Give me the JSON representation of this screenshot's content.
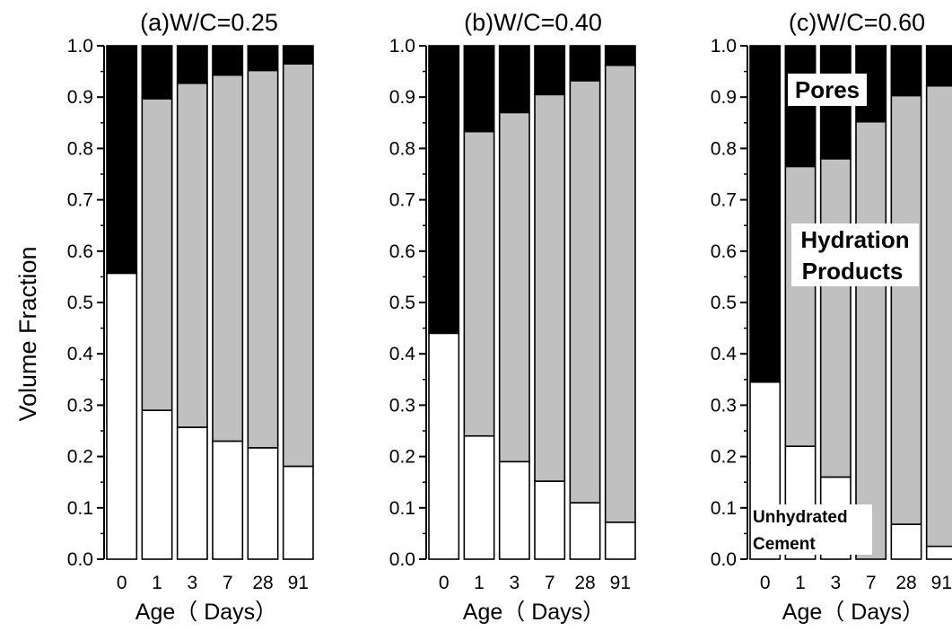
{
  "chart_data": [
    {
      "type": "bar",
      "stacked": true,
      "title": "(a)W/C=0.25",
      "xlabel": "Age（ Days）",
      "ylabel": "Volume Fraction",
      "ylim": [
        0,
        1.0
      ],
      "yticks": [
        "0.0",
        "0.1",
        "0.2",
        "0.3",
        "0.4",
        "0.5",
        "0.6",
        "0.7",
        "0.8",
        "0.9",
        "1.0"
      ],
      "categories": [
        "0",
        "1",
        "3",
        "7",
        "28",
        "91"
      ],
      "series": [
        {
          "values": [
            0.557,
            0.29,
            0.257,
            0.23,
            0.217,
            0.181
          ],
          "color": "#ffffff"
        },
        {
          "values": [
            0.0,
            0.607,
            0.67,
            0.713,
            0.735,
            0.784
          ],
          "color": "#c0c0c0"
        },
        {
          "values": [
            0.443,
            0.103,
            0.073,
            0.057,
            0.048,
            0.035
          ],
          "color": "#000000"
        }
      ]
    },
    {
      "type": "bar",
      "stacked": true,
      "title": "(b)W/C=0.40",
      "xlabel": "Age（ Days）",
      "ylim": [
        0,
        1.0
      ],
      "yticks": [
        "0.0",
        "0.1",
        "0.2",
        "0.3",
        "0.4",
        "0.5",
        "0.6",
        "0.7",
        "0.8",
        "0.9",
        "1.0"
      ],
      "categories": [
        "0",
        "1",
        "3",
        "7",
        "28",
        "91"
      ],
      "series": [
        {
          "values": [
            0.44,
            0.24,
            0.19,
            0.152,
            0.11,
            0.072
          ],
          "color": "#ffffff"
        },
        {
          "values": [
            0.0,
            0.593,
            0.68,
            0.753,
            0.822,
            0.89
          ],
          "color": "#c0c0c0"
        },
        {
          "values": [
            0.56,
            0.167,
            0.13,
            0.095,
            0.068,
            0.038
          ],
          "color": "#000000"
        }
      ]
    },
    {
      "type": "bar",
      "stacked": true,
      "title": "(c)W/C=0.60",
      "xlabel": "Age（ Days）",
      "ylim": [
        0,
        1.0
      ],
      "yticks": [
        "0.0",
        "0.1",
        "0.2",
        "0.3",
        "0.4",
        "0.5",
        "0.6",
        "0.7",
        "0.8",
        "0.9",
        "1.0"
      ],
      "categories": [
        "0",
        "1",
        "3",
        "7",
        "28",
        "91"
      ],
      "series": [
        {
          "values": [
            0.345,
            0.22,
            0.16,
            0.0,
            0.068,
            0.025
          ],
          "color": "#ffffff"
        },
        {
          "values": [
            0.0,
            0.545,
            0.62,
            0.852,
            0.835,
            0.897
          ],
          "color": "#c0c0c0"
        },
        {
          "values": [
            0.655,
            0.235,
            0.22,
            0.148,
            0.097,
            0.078
          ],
          "color": "#000000"
        }
      ],
      "annotations": {
        "pores": "Pores",
        "hydration_line1": "Hydration",
        "hydration_line2": "Products",
        "unhydrated_line1": "Unhydrated",
        "unhydrated_line2": "Cement"
      }
    }
  ]
}
